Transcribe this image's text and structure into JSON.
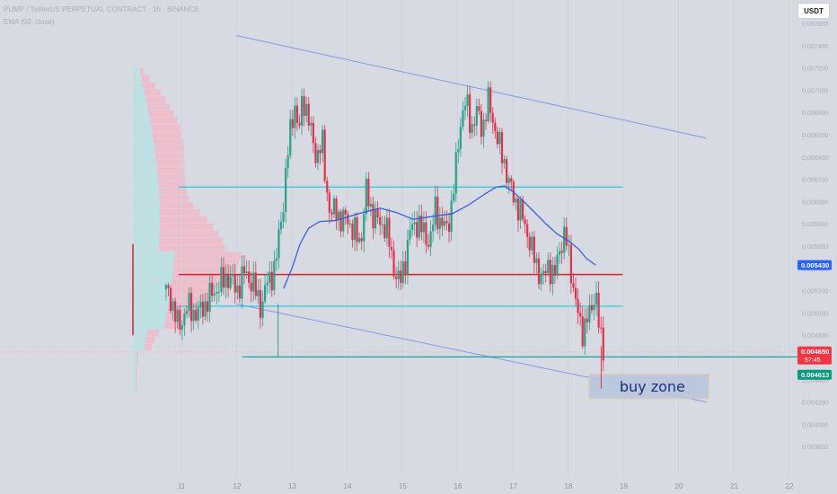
{
  "header": {
    "symbol_line": "PUMP / TetherUS PERPETUAL CONTRACT · 1h · BINANCE",
    "indicator_line": "EMA (50, close)"
  },
  "currency_button": "USDT",
  "price_tags": {
    "ema": "0.005430",
    "last_price": "0.004650",
    "countdown": "57:45",
    "bid": "0.004613"
  },
  "annotation": "buy zone",
  "colors": {
    "background": "#d7dae1",
    "bull": "#2aa08a",
    "bear": "#e0314a",
    "ema": "#3056e0",
    "cyan_level": "#22c7d8",
    "teal_level": "#1aa4a4",
    "red_level": "#d6212c",
    "channel": "#7f97e8",
    "profile_up": "#b8e0e2",
    "profile_down": "#f0b9c8",
    "tag_ema": "#2962ff",
    "tag_last": "#f23645",
    "tag_bid": "#089981"
  },
  "chart_data": {
    "type": "candlestick",
    "interval": "1h",
    "y_axis_ticks": [
      "0.007600",
      "0.007400",
      "0.007200",
      "0.007000",
      "0.006800",
      "0.006600",
      "0.006400",
      "0.006200",
      "0.006000",
      "0.005800",
      "0.005600",
      "0.005400",
      "0.005200",
      "0.005000",
      "0.004800",
      "0.004600",
      "0.004400",
      "0.004200",
      "0.004000",
      "0.003800"
    ],
    "x_axis_ticks": [
      "11",
      "12",
      "13",
      "14",
      "15",
      "16",
      "17",
      "18",
      "19",
      "20",
      "21",
      "22"
    ],
    "ylim": [
      0.00372,
      0.00778
    ],
    "levels": [
      {
        "name": "upper-resistance",
        "price": 0.00613,
        "start_day": 10.95,
        "end_day": 18.99
      },
      {
        "name": "mid-support",
        "price": 0.005345,
        "start_day": 10.95,
        "end_day": 18.99
      },
      {
        "name": "lower-support",
        "price": 0.00506,
        "start_day": 10.95,
        "end_day": 18.99
      },
      {
        "name": "base-support",
        "price": 0.004605,
        "start_day": 12.1,
        "end_day": 22.5
      }
    ],
    "channel_upper": {
      "from": [
        12.0,
        0.00749
      ],
      "to": [
        20.5,
        0.00657
      ]
    },
    "channel_lower": {
      "from": [
        12.0,
        0.00508
      ],
      "to": [
        20.5,
        0.0042
      ]
    },
    "buy_zone": {
      "start_day": 18.38,
      "end_day": 20.55,
      "low": 0.00423,
      "high": 0.00445
    },
    "ema50_path": [
      [
        12.85,
        0.00522
      ],
      [
        13.0,
        0.0054
      ],
      [
        13.15,
        0.00562
      ],
      [
        13.3,
        0.00576
      ],
      [
        13.5,
        0.00582
      ],
      [
        13.8,
        0.00583
      ],
      [
        14.2,
        0.00589
      ],
      [
        14.6,
        0.00594
      ],
      [
        14.9,
        0.0059
      ],
      [
        15.2,
        0.00584
      ],
      [
        15.6,
        0.00587
      ],
      [
        15.9,
        0.00589
      ],
      [
        16.2,
        0.00597
      ],
      [
        16.5,
        0.00607
      ],
      [
        16.7,
        0.00613
      ],
      [
        16.85,
        0.00614
      ],
      [
        17.0,
        0.00609
      ],
      [
        17.2,
        0.006
      ],
      [
        17.4,
        0.0059
      ],
      [
        17.6,
        0.0058
      ],
      [
        17.8,
        0.00571
      ],
      [
        18.0,
        0.00565
      ],
      [
        18.2,
        0.00557
      ],
      [
        18.33,
        0.00549
      ],
      [
        18.5,
        0.00543
      ]
    ],
    "candle_keypoints": [
      [
        10.68,
        0.00521
      ],
      [
        10.8,
        0.00515
      ],
      [
        10.95,
        0.00486
      ],
      [
        11.1,
        0.00505
      ],
      [
        11.3,
        0.00499
      ],
      [
        11.5,
        0.00513
      ],
      [
        11.7,
        0.00526
      ],
      [
        11.85,
        0.00533
      ],
      [
        12.0,
        0.0052
      ],
      [
        12.15,
        0.00537
      ],
      [
        12.3,
        0.00525
      ],
      [
        12.45,
        0.00505
      ],
      [
        12.55,
        0.00527
      ],
      [
        12.7,
        0.00541
      ],
      [
        12.78,
        0.00575
      ],
      [
        12.85,
        0.00602
      ],
      [
        12.95,
        0.00655
      ],
      [
        13.05,
        0.0069
      ],
      [
        13.12,
        0.00658
      ],
      [
        13.2,
        0.00695
      ],
      [
        13.27,
        0.00682
      ],
      [
        13.35,
        0.0066
      ],
      [
        13.45,
        0.0064
      ],
      [
        13.55,
        0.00653
      ],
      [
        13.6,
        0.00625
      ],
      [
        13.7,
        0.00585
      ],
      [
        13.8,
        0.00595
      ],
      [
        13.9,
        0.0058
      ],
      [
        14.0,
        0.00588
      ],
      [
        14.1,
        0.00573
      ],
      [
        14.25,
        0.00565
      ],
      [
        14.35,
        0.0061
      ],
      [
        14.45,
        0.0059
      ],
      [
        14.55,
        0.00582
      ],
      [
        14.7,
        0.00578
      ],
      [
        14.85,
        0.0054
      ],
      [
        14.95,
        0.00525
      ],
      [
        15.05,
        0.00548
      ],
      [
        15.15,
        0.00575
      ],
      [
        15.25,
        0.00582
      ],
      [
        15.35,
        0.00575
      ],
      [
        15.5,
        0.00563
      ],
      [
        15.6,
        0.00595
      ],
      [
        15.7,
        0.0058
      ],
      [
        15.8,
        0.00575
      ],
      [
        15.9,
        0.00598
      ],
      [
        16.0,
        0.00645
      ],
      [
        16.05,
        0.00672
      ],
      [
        16.15,
        0.0069
      ],
      [
        16.25,
        0.00666
      ],
      [
        16.35,
        0.0068
      ],
      [
        16.45,
        0.00665
      ],
      [
        16.55,
        0.0069
      ],
      [
        16.65,
        0.00672
      ],
      [
        16.75,
        0.0065
      ],
      [
        16.85,
        0.00635
      ],
      [
        16.95,
        0.00612
      ],
      [
        17.1,
        0.00595
      ],
      [
        17.25,
        0.00575
      ],
      [
        17.35,
        0.00555
      ],
      [
        17.45,
        0.0054
      ],
      [
        17.55,
        0.0053
      ],
      [
        17.65,
        0.00545
      ],
      [
        17.75,
        0.0053
      ],
      [
        17.85,
        0.0056
      ],
      [
        17.95,
        0.0057
      ],
      [
        18.05,
        0.0054
      ],
      [
        18.15,
        0.00505
      ],
      [
        18.25,
        0.00483
      ],
      [
        18.35,
        0.00495
      ],
      [
        18.42,
        0.005
      ],
      [
        18.48,
        0.0052
      ],
      [
        18.53,
        0.0051
      ],
      [
        18.56,
        0.00487
      ],
      [
        18.6,
        0.00472
      ],
      [
        18.65,
        0.00465
      ]
    ],
    "volume_profile_note": "horizontal volume profile anchored at the left (up volume cyan, down volume pink)",
    "last_price": 0.00465,
    "ema_last": 0.00543
  }
}
